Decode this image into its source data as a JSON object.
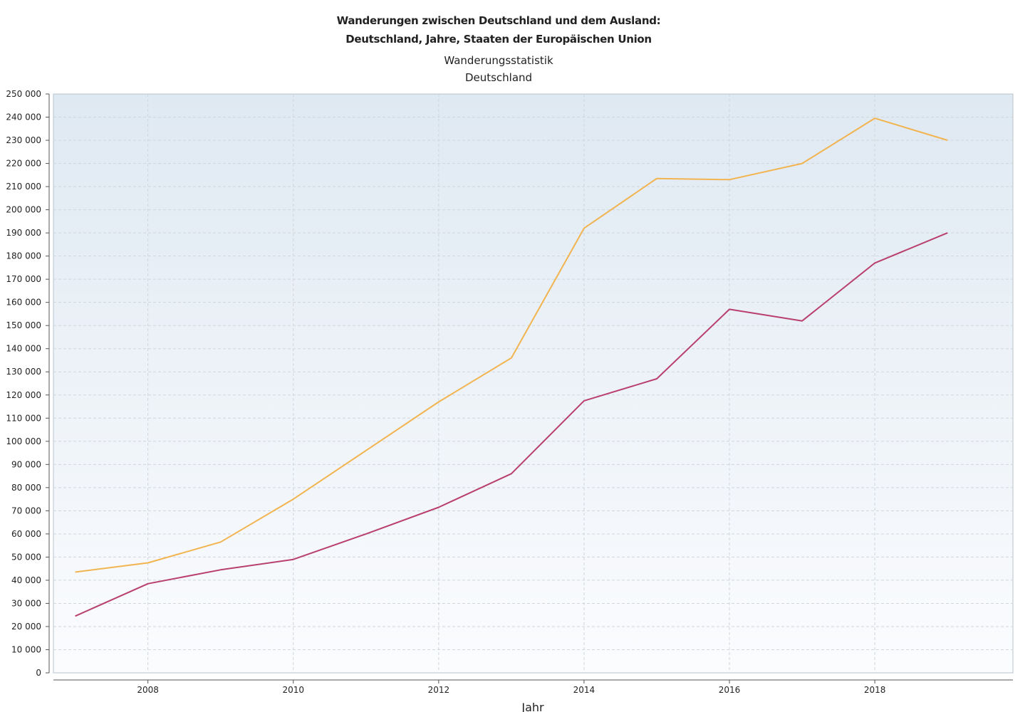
{
  "chart_data": {
    "type": "line",
    "title": [
      "Wanderungen zwischen Deutschland und dem Ausland:",
      "Deutschland, Jahre, Staaten der Europäischen Union"
    ],
    "subtitle": [
      "Wanderungsstatistik",
      "Deutschland"
    ],
    "xlabel": "Jahr",
    "ylabel": "",
    "x": [
      2007,
      2008,
      2009,
      2010,
      2011,
      2012,
      2013,
      2014,
      2015,
      2016,
      2017,
      2018,
      2019
    ],
    "x_ticks": [
      2008,
      2010,
      2012,
      2014,
      2016,
      2018
    ],
    "x_tick_labels": [
      "2008",
      "2010",
      "2012",
      "2014",
      "2016",
      "2018"
    ],
    "xlim": [
      2006.7,
      2019.9
    ],
    "y_ticks": [
      0,
      10000,
      20000,
      30000,
      40000,
      50000,
      60000,
      70000,
      80000,
      90000,
      100000,
      110000,
      120000,
      130000,
      140000,
      150000,
      160000,
      170000,
      180000,
      190000,
      200000,
      210000,
      220000,
      230000,
      240000,
      250000
    ],
    "y_tick_labels": [
      "0",
      "10 000",
      "20 000",
      "30 000",
      "40 000",
      "50 000",
      "60 000",
      "70 000",
      "80 000",
      "90 000",
      "100 000",
      "110 000",
      "120 000",
      "130 000",
      "140 000",
      "150 000",
      "160 000",
      "170 000",
      "180 000",
      "190 000",
      "200 000",
      "210 000",
      "220 000",
      "230 000",
      "240 000",
      "250 000"
    ],
    "ylim": [
      0,
      250000
    ],
    "grid": true,
    "legend": "none",
    "series": [
      {
        "color": "#f2b450",
        "values": [
          43500,
          47500,
          56500,
          75000,
          96000,
          117000,
          136000,
          192000,
          213500,
          213000,
          220000,
          239500,
          230000
        ]
      },
      {
        "color": "#b9406e",
        "values": [
          24500,
          38500,
          44500,
          49000,
          60000,
          71500,
          86000,
          117500,
          127000,
          157000,
          152000,
          177000,
          190000
        ]
      }
    ]
  }
}
